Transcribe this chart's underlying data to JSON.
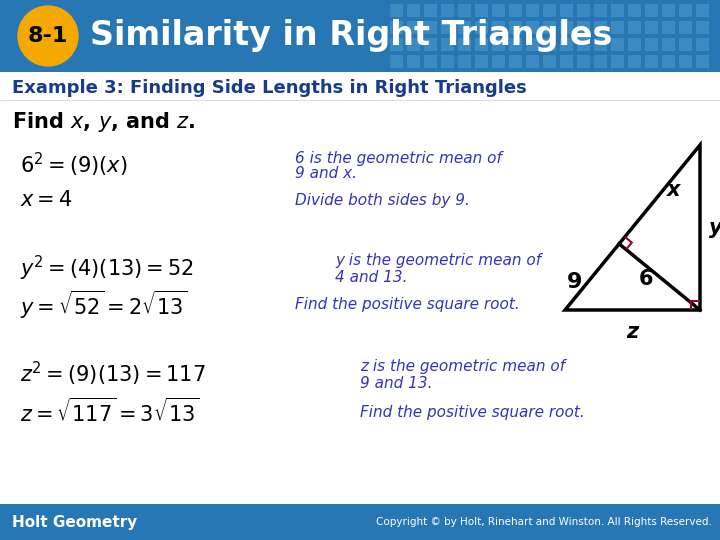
{
  "title_badge": "8-1",
  "title_text": "Similarity in Right Triangles",
  "subtitle": "Example 3: Finding Side Lengths in Right Triangles",
  "header_bg_color": "#2777B5",
  "badge_color": "#F5A800",
  "badge_text_color": "#000000",
  "subtitle_color": "#1A3A8C",
  "body_bg_color": "#FFFFFF",
  "blue_text_color": "#3333BB",
  "footer_bg_color": "#2777B5",
  "footer_left": "Holt Geometry",
  "footer_right": "Copyright © by Holt, Rinehart and Winston. All Rights Reserved."
}
